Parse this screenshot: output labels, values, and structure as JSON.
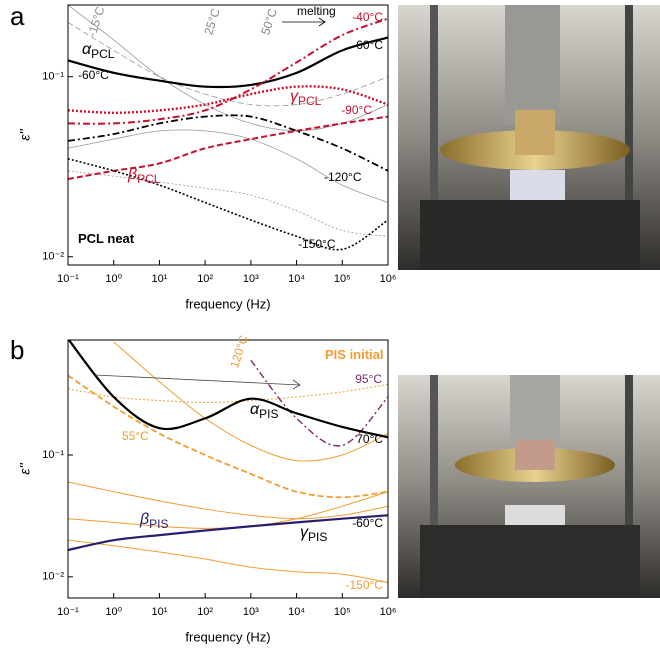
{
  "chart_data": [
    {
      "type": "line",
      "panel": "a",
      "xlabel": "frequency (Hz)",
      "ylabel": "ε''",
      "x": [
        0.1,
        1,
        10,
        100,
        1000,
        10000,
        100000,
        1000000
      ],
      "xlim": [
        0.1,
        1000000
      ],
      "ylim": [
        0.009,
        0.25
      ],
      "log_x": true,
      "log_y": true,
      "xticks": [
        {
          "value": 0.1,
          "label": "10⁻¹"
        },
        {
          "value": 1,
          "label": "10⁰"
        },
        {
          "value": 10,
          "label": "10¹"
        },
        {
          "value": 100,
          "label": "10²"
        },
        {
          "value": 1000,
          "label": "10³"
        },
        {
          "value": 10000,
          "label": "10⁴"
        },
        {
          "value": 100000,
          "label": "10⁵"
        },
        {
          "value": 1000000,
          "label": "10⁶"
        }
      ],
      "yticks": [
        {
          "value": 0.01,
          "label": "10⁻²"
        },
        {
          "value": 0.1,
          "label": "10⁻¹"
        }
      ],
      "series": [
        {
          "color": "#999999",
          "dash": "solid",
          "width": 0.8,
          "values": [
            0.25,
            0.16,
            0.1,
            0.07,
            0.055,
            0.05,
            0.055,
            0.07
          ]
        },
        {
          "color": "#999999",
          "dash": "dashed",
          "width": 0.8,
          "values": [
            0.2,
            0.14,
            0.1,
            0.08,
            0.07,
            0.07,
            0.08,
            0.1
          ]
        },
        {
          "color": "#999999",
          "dash": "dotted",
          "width": 0.8,
          "values": [
            0.03,
            0.028,
            0.026,
            0.024,
            0.022,
            0.018,
            0.014,
            0.013
          ]
        },
        {
          "color": "#999999",
          "dash": "solid",
          "width": 0.8,
          "values": [
            0.04,
            0.045,
            0.05,
            0.05,
            0.045,
            0.035,
            0.025,
            0.02
          ]
        },
        {
          "color": "#000000",
          "dash": "solid",
          "width": 2.2,
          "values": [
            0.123,
            0.105,
            0.095,
            0.088,
            0.09,
            0.105,
            0.14,
            0.165
          ]
        },
        {
          "color": "#c8102e",
          "dash": "dashdot",
          "width": 2,
          "values": [
            0.055,
            0.055,
            0.058,
            0.065,
            0.085,
            0.12,
            0.17,
            0.21
          ]
        },
        {
          "color": "#c8102e",
          "dash": "dotted",
          "width": 2.4,
          "values": [
            0.065,
            0.063,
            0.065,
            0.07,
            0.08,
            0.088,
            0.085,
            0.07
          ]
        },
        {
          "color": "#c8102e",
          "dash": "dashed",
          "width": 2,
          "values": [
            0.027,
            0.03,
            0.033,
            0.04,
            0.045,
            0.05,
            0.055,
            0.06
          ]
        },
        {
          "color": "#000000",
          "dash": "dashdot",
          "width": 1.8,
          "values": [
            0.044,
            0.048,
            0.055,
            0.06,
            0.06,
            0.05,
            0.04,
            0.03
          ]
        },
        {
          "color": "#000000",
          "dash": "dotted",
          "width": 1.6,
          "values": [
            0.035,
            0.03,
            0.025,
            0.02,
            0.016,
            0.013,
            0.011,
            0.016
          ]
        }
      ],
      "annotations": [
        {
          "text": "-15°C"
        },
        {
          "text": "25°C"
        },
        {
          "text": "50°C"
        },
        {
          "text": "melting"
        },
        {
          "text": "-40°C"
        },
        {
          "text": "α",
          "sub": "PCL"
        },
        {
          "text": "-60°C"
        },
        {
          "text": "-60°C"
        },
        {
          "text": "γ",
          "sub": "PCL"
        },
        {
          "text": "-90°C"
        },
        {
          "text": "β",
          "sub": "PCL"
        },
        {
          "text": "-120°C"
        },
        {
          "text": "-150°C"
        },
        {
          "text": "PCL neat"
        }
      ]
    },
    {
      "type": "line",
      "panel": "b",
      "xlabel": "frequency (Hz)",
      "ylabel": "ε''",
      "x": [
        0.1,
        1,
        10,
        100,
        1000,
        10000,
        100000,
        1000000
      ],
      "xlim": [
        0.1,
        1000000
      ],
      "ylim": [
        0.0067,
        0.88
      ],
      "log_x": true,
      "log_y": true,
      "xticks": [
        {
          "value": 0.1,
          "label": "10⁻¹"
        },
        {
          "value": 1,
          "label": "10⁰"
        },
        {
          "value": 10,
          "label": "10¹"
        },
        {
          "value": 100,
          "label": "10²"
        },
        {
          "value": 1000,
          "label": "10³"
        },
        {
          "value": 10000,
          "label": "10⁴"
        },
        {
          "value": 100000,
          "label": "10⁵"
        },
        {
          "value": 1000000,
          "label": "10⁶"
        }
      ],
      "yticks": [
        {
          "value": 0.01,
          "label": "10⁻²"
        },
        {
          "value": 0.1,
          "label": "10⁻¹"
        }
      ],
      "series": [
        {
          "color": "#f39c34",
          "dash": "solid",
          "width": 1,
          "values": [
            null,
            0.85,
            0.4,
            0.2,
            0.12,
            0.09,
            0.1,
            0.15
          ]
        },
        {
          "color": "#f39c34",
          "dash": "dashed",
          "width": 1.8,
          "values": [
            0.45,
            0.25,
            0.15,
            0.1,
            0.07,
            0.05,
            0.045,
            0.05
          ]
        },
        {
          "color": "#f39c34",
          "dash": "dotted",
          "width": 1,
          "values": [
            0.35,
            0.3,
            0.28,
            0.27,
            0.28,
            0.3,
            0.33,
            0.38
          ]
        },
        {
          "color": "#f39c34",
          "dash": "solid",
          "width": 1,
          "values": [
            0.06,
            0.05,
            0.042,
            0.036,
            0.032,
            0.03,
            0.032,
            0.038
          ]
        },
        {
          "color": "#f39c34",
          "dash": "solid",
          "width": 1,
          "values": [
            0.03,
            0.028,
            0.026,
            0.025,
            0.026,
            0.03,
            0.038,
            0.05
          ]
        },
        {
          "color": "#f39c34",
          "dash": "solid",
          "width": 1,
          "values": [
            0.02,
            0.018,
            0.016,
            0.014,
            0.012,
            0.011,
            0.0105,
            0.009
          ]
        },
        {
          "color": "#7a2a6e",
          "dash": "dashdot",
          "width": 1.4,
          "values": [
            null,
            null,
            null,
            null,
            0.6,
            0.2,
            0.12,
            0.3
          ]
        },
        {
          "color": "#000000",
          "dash": "solid",
          "width": 2.2,
          "values": [
            0.9,
            0.3,
            0.166,
            0.2,
            0.29,
            0.22,
            0.17,
            0.14
          ]
        },
        {
          "color": "#2a1f6e",
          "dash": "solid",
          "width": 2.2,
          "values": [
            0.0166,
            0.02,
            0.022,
            0.024,
            0.026,
            0.028,
            0.03,
            0.032
          ]
        }
      ],
      "annotations": [
        {
          "text": "120°C"
        },
        {
          "text": "PIS initial"
        },
        {
          "text": "95°C"
        },
        {
          "text": "α",
          "sub": "PIS"
        },
        {
          "text": "55°C"
        },
        {
          "text": "70°C"
        },
        {
          "text": "β",
          "sub": "PIS"
        },
        {
          "text": "γ",
          "sub": "PIS"
        },
        {
          "text": "-60°C"
        },
        {
          "text": "-150°C"
        }
      ]
    }
  ]
}
